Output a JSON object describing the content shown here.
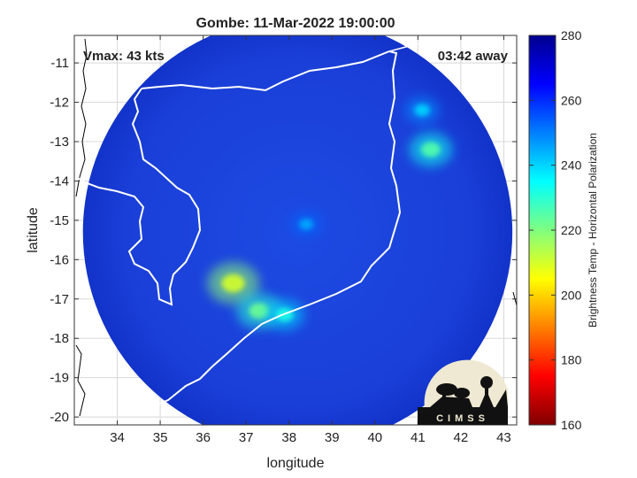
{
  "chart_data": {
    "type": "heatmap",
    "title": "Gombe: 11-Mar-2022 19:00:00",
    "xlabel": "longitude",
    "ylabel": "latitude",
    "xlim": [
      33.0,
      43.3
    ],
    "ylim": [
      -20.2,
      -10.3
    ],
    "xticks": [
      34,
      35,
      36,
      37,
      38,
      39,
      40,
      41,
      42,
      43
    ],
    "yticks": [
      -11,
      -12,
      -13,
      -14,
      -15,
      -16,
      -17,
      -18,
      -19,
      -20
    ],
    "grid": true,
    "annotations": {
      "left": "Vmax: 43 kts",
      "right": "03:42 away"
    },
    "colorbar": {
      "label": "Brightness Temp - Horizontal Polarization",
      "min": 160,
      "max": 280,
      "ticks": [
        160,
        180,
        200,
        220,
        240,
        260,
        280
      ],
      "colormap": "jet"
    },
    "swath": {
      "center_lon": 38.2,
      "center_lat": -15.3,
      "radius_deg": 5.0
    },
    "colors": {
      "background_field": "#1a3fd8",
      "swath_edge": "#0f2fc0",
      "coastline": "#ffffff",
      "land_border": "#000000"
    },
    "features": [
      {
        "lon": 38.4,
        "lat": -15.1,
        "value": 245
      },
      {
        "lon": 36.7,
        "lat": -16.6,
        "value": 210
      },
      {
        "lon": 37.3,
        "lat": -17.3,
        "value": 222
      },
      {
        "lon": 37.9,
        "lat": -17.4,
        "value": 232
      },
      {
        "lon": 41.3,
        "lat": -13.2,
        "value": 225
      },
      {
        "lon": 41.1,
        "lat": -12.2,
        "value": 240
      }
    ]
  },
  "logo": {
    "text": "CIMSS"
  }
}
